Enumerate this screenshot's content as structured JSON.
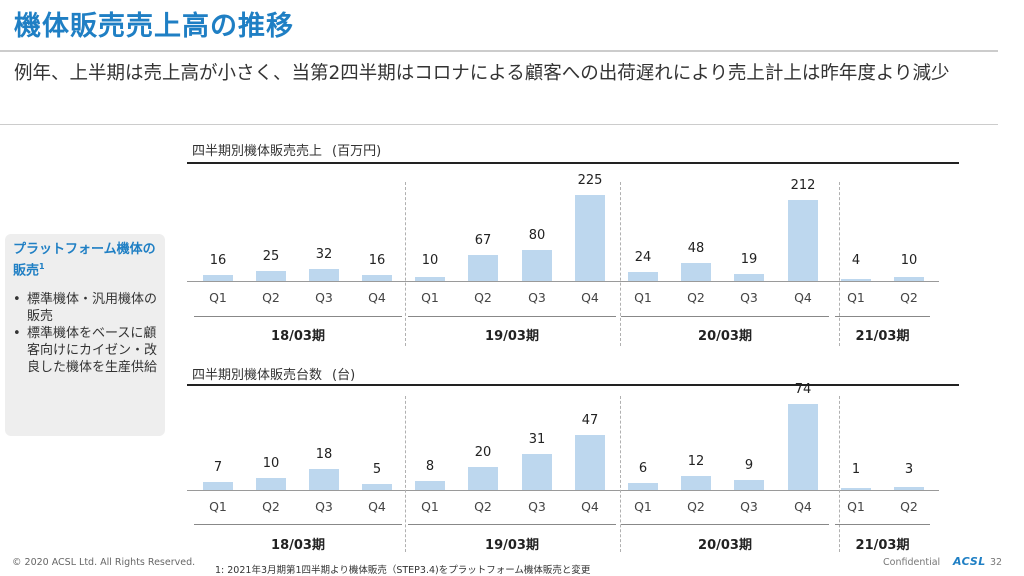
{
  "header": {
    "title": "機体販売売上高の推移",
    "subtitle": "例年、上半期は売上高が小さく、当第2四半期はコロナによる顧客への出荷遅れにより売上計上は昨年度より減少"
  },
  "sidebar": {
    "heading": "プラットフォーム機体の販売",
    "heading_sup": "1",
    "bullets": [
      "標準機体・汎用機体の販売",
      "標準機体をベースに顧客向けにカイゼン・改良した機体を生産供給"
    ]
  },
  "chart_data": [
    {
      "type": "bar",
      "title": "四半期別機体販売売上",
      "unit": "(百万円)",
      "color": "#bdd7ee",
      "categories": [
        "Q1",
        "Q2",
        "Q3",
        "Q4",
        "Q1",
        "Q2",
        "Q3",
        "Q4",
        "Q1",
        "Q2",
        "Q3",
        "Q4",
        "Q1",
        "Q2"
      ],
      "groups": [
        {
          "label": "18/03期",
          "quarters": [
            "Q1",
            "Q2",
            "Q3",
            "Q4"
          ],
          "values": [
            16,
            25,
            32,
            16
          ]
        },
        {
          "label": "19/03期",
          "quarters": [
            "Q1",
            "Q2",
            "Q3",
            "Q4"
          ],
          "values": [
            10,
            67,
            80,
            225
          ]
        },
        {
          "label": "20/03期",
          "quarters": [
            "Q1",
            "Q2",
            "Q3",
            "Q4"
          ],
          "values": [
            24,
            48,
            19,
            212
          ]
        },
        {
          "label": "21/03期",
          "quarters": [
            "Q1",
            "Q2"
          ],
          "values": [
            4,
            10
          ]
        }
      ],
      "values": [
        16,
        25,
        32,
        16,
        10,
        67,
        80,
        225,
        24,
        48,
        19,
        212,
        4,
        10
      ],
      "ylim": [
        0,
        225
      ]
    },
    {
      "type": "bar",
      "title": "四半期別機体販売台数",
      "unit": "(台)",
      "color": "#bdd7ee",
      "categories": [
        "Q1",
        "Q2",
        "Q3",
        "Q4",
        "Q1",
        "Q2",
        "Q3",
        "Q4",
        "Q1",
        "Q2",
        "Q3",
        "Q4",
        "Q1",
        "Q2"
      ],
      "groups": [
        {
          "label": "18/03期",
          "quarters": [
            "Q1",
            "Q2",
            "Q3",
            "Q4"
          ],
          "values": [
            7,
            10,
            18,
            5
          ]
        },
        {
          "label": "19/03期",
          "quarters": [
            "Q1",
            "Q2",
            "Q3",
            "Q4"
          ],
          "values": [
            8,
            20,
            31,
            47
          ]
        },
        {
          "label": "20/03期",
          "quarters": [
            "Q1",
            "Q2",
            "Q3",
            "Q4"
          ],
          "values": [
            6,
            12,
            9,
            74
          ]
        },
        {
          "label": "21/03期",
          "quarters": [
            "Q1",
            "Q2"
          ],
          "values": [
            1,
            3
          ]
        }
      ],
      "values": [
        7,
        10,
        18,
        5,
        8,
        20,
        31,
        47,
        6,
        12,
        9,
        74,
        1,
        3
      ],
      "ylim": [
        0,
        74
      ]
    }
  ],
  "footer": {
    "copyright": "© 2020 ACSL Ltd. All Rights Reserved.",
    "footnote": "1: 2021年3月期第1四半期より機体販売（STEP3.4)をプラットフォーム機体販売と変更",
    "confidential": "Confidential",
    "logo": "ACSL",
    "page": "32"
  }
}
